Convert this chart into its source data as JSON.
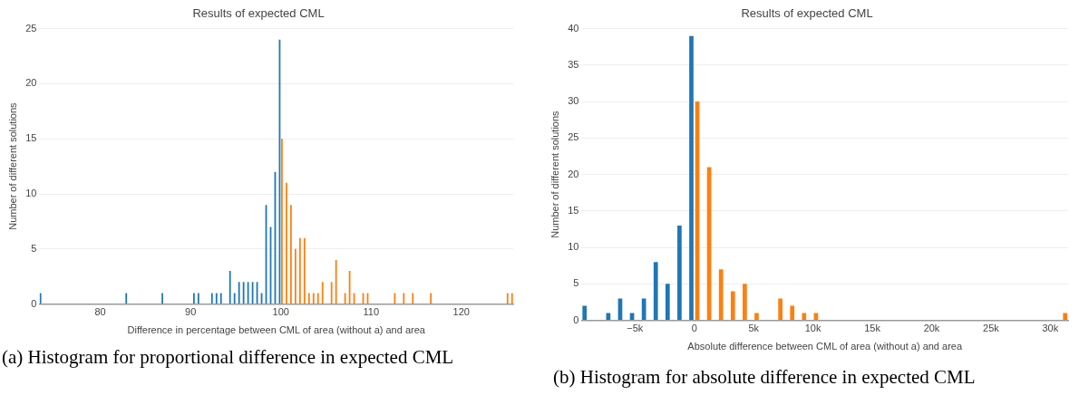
{
  "chart_data": [
    {
      "type": "histogram",
      "title": "Results of expected CML",
      "xlabel": "Difference in percentage between CML of area (without a) and area",
      "ylabel": "Number of different solutions",
      "bins": [
        73.25,
        73.75,
        74.25,
        74.75,
        75.25,
        75.75,
        76.25,
        76.75,
        77.25,
        77.75,
        78.25,
        78.75,
        79.25,
        79.75,
        80.25,
        80.75,
        81.25,
        81.75,
        82.25,
        82.75,
        83.25,
        83.75,
        84.25,
        84.75,
        85.25,
        85.75,
        86.25,
        86.75,
        87.25,
        87.75,
        88.25,
        88.75,
        89.25,
        89.75,
        90.25,
        90.75,
        91.25,
        91.75,
        92.25,
        92.75,
        93.25,
        93.75,
        94.25,
        94.75,
        95.25,
        95.75,
        96.25,
        96.75,
        97.25,
        97.75,
        98.25,
        98.75,
        99.25,
        99.75,
        100.25,
        100.75,
        101.25,
        101.75,
        102.25,
        102.75,
        103.25,
        103.75,
        104.25,
        104.75,
        105.25,
        105.75,
        106.25,
        106.75,
        107.25,
        107.75,
        108.25,
        108.75,
        109.25,
        109.75,
        110.25,
        110.75,
        111.25,
        111.75,
        112.25,
        112.75,
        113.25,
        113.75,
        114.25,
        114.75,
        115.25,
        115.75,
        116.25,
        116.75,
        117.25,
        117.75,
        118.25,
        118.75,
        119.25,
        119.75,
        120.25,
        120.75,
        121.25,
        121.75,
        122.25,
        122.75,
        123.25,
        123.75,
        124.25,
        124.75,
        125.25,
        125.75
      ],
      "series": [
        {
          "color": "#1f77b4",
          "values": [
            1,
            0,
            0,
            0,
            0,
            0,
            0,
            0,
            0,
            0,
            0,
            0,
            0,
            0,
            0,
            0,
            0,
            0,
            0,
            1,
            0,
            0,
            0,
            0,
            0,
            0,
            0,
            1,
            0,
            0,
            0,
            0,
            0,
            0,
            1,
            1,
            0,
            0,
            1,
            1,
            1,
            0,
            3,
            1,
            2,
            2,
            2,
            2,
            2,
            1,
            9,
            7,
            12,
            24,
            0,
            0,
            0,
            0,
            0,
            0,
            0,
            0,
            0,
            0,
            0,
            0,
            0,
            0,
            0,
            0,
            0,
            0,
            0,
            0,
            0,
            0,
            0,
            0,
            0,
            0,
            0,
            0,
            0,
            0,
            0,
            0,
            0,
            0,
            0,
            0,
            0,
            0,
            0,
            0,
            0,
            0,
            0,
            0,
            0,
            0,
            0,
            0,
            0,
            0,
            0
          ]
        },
        {
          "color": "#ff7f0e",
          "values": [
            0,
            0,
            0,
            0,
            0,
            0,
            0,
            0,
            0,
            0,
            0,
            0,
            0,
            0,
            0,
            0,
            0,
            0,
            0,
            0,
            0,
            0,
            0,
            0,
            0,
            0,
            0,
            0,
            0,
            0,
            0,
            0,
            0,
            0,
            0,
            0,
            0,
            0,
            0,
            0,
            0,
            0,
            0,
            0,
            0,
            0,
            0,
            0,
            0,
            0,
            0,
            0,
            0,
            15,
            11,
            9,
            5,
            6,
            6,
            1,
            1,
            1,
            2,
            0,
            2,
            4,
            0,
            1,
            3,
            1,
            0,
            1,
            1,
            0,
            0,
            0,
            0,
            0,
            1,
            0,
            1,
            0,
            1,
            0,
            0,
            0,
            1,
            0,
            0,
            0,
            0,
            0,
            0,
            0,
            0,
            0,
            0,
            0,
            0,
            0,
            0,
            0,
            0,
            1,
            1
          ]
        }
      ],
      "xlim": [
        73.25,
        125.75
      ],
      "xticks": [
        80,
        90,
        100,
        110,
        120
      ],
      "ylim": [
        0,
        25
      ],
      "yticks": [
        0,
        5,
        10,
        15,
        20,
        25
      ],
      "grid": "y",
      "annotations": [
        "(a) Histogram for proportional difference in expected CML"
      ]
    },
    {
      "type": "histogram",
      "title": "Results of expected CML",
      "xlabel": "Absolute difference between CML of area (without a) and area",
      "ylabel": "Number of different solutions",
      "bins": [
        -9500,
        -8500,
        -7500,
        -6500,
        -5500,
        -4500,
        -3500,
        -2500,
        -1500,
        -500,
        500,
        1500,
        2500,
        3500,
        4500,
        5500,
        6500,
        7500,
        8500,
        9500,
        10500,
        11500,
        12500,
        13500,
        14500,
        15500,
        16500,
        17500,
        18500,
        19500,
        20500,
        21500,
        22500,
        23500,
        24500,
        25500,
        26500,
        27500,
        28500,
        29500,
        30500,
        31500
      ],
      "series": [
        {
          "color": "#1f77b4",
          "values": [
            2,
            0,
            1,
            3,
            1,
            3,
            8,
            5,
            13,
            39,
            0,
            0,
            0,
            0,
            0,
            0,
            0,
            0,
            0,
            0,
            0,
            0,
            0,
            0,
            0,
            0,
            0,
            0,
            0,
            0,
            0,
            0,
            0,
            0,
            0,
            0,
            0,
            0,
            0,
            0,
            0
          ]
        },
        {
          "color": "#ff7f0e",
          "values": [
            0,
            0,
            0,
            0,
            0,
            0,
            0,
            0,
            0,
            30,
            21,
            7,
            4,
            5,
            1,
            0,
            3,
            2,
            1,
            1,
            0,
            0,
            0,
            0,
            0,
            0,
            0,
            0,
            0,
            0,
            0,
            0,
            0,
            0,
            0,
            0,
            0,
            0,
            0,
            0,
            1
          ]
        }
      ],
      "xlim": [
        -9500,
        31500
      ],
      "xticks": [
        {
          "value": -5000,
          "label": "−5k"
        },
        0,
        {
          "value": 5000,
          "label": "5k"
        },
        {
          "value": 10000,
          "label": "10k"
        },
        {
          "value": 15000,
          "label": "15k"
        },
        {
          "value": 20000,
          "label": "20k"
        },
        {
          "value": 25000,
          "label": "25k"
        },
        {
          "value": 30000,
          "label": "30k"
        }
      ],
      "ylim": [
        0,
        40
      ],
      "yticks": [
        0,
        5,
        10,
        15,
        20,
        25,
        30,
        35,
        40
      ],
      "grid": "y",
      "annotations": [
        "(b) Histogram for absolute difference in expected CML"
      ]
    }
  ]
}
